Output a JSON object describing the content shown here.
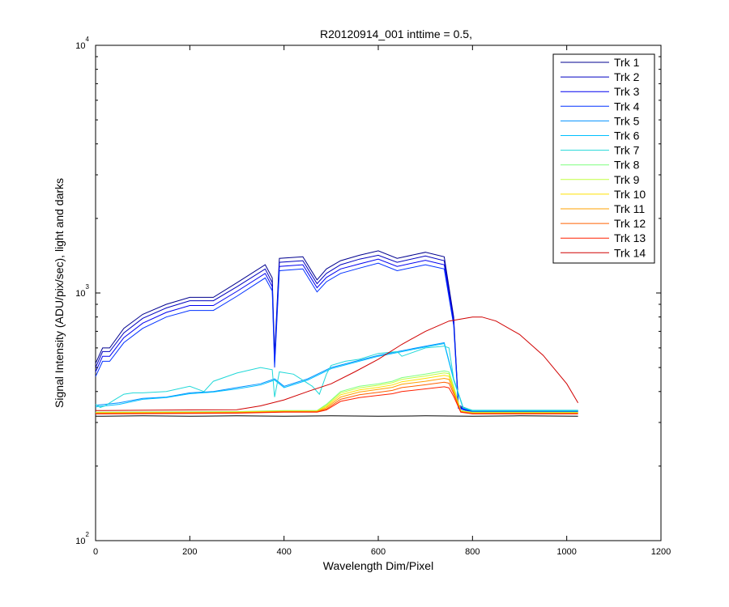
{
  "chart_data": {
    "type": "line",
    "title": "R20120914_001 inttime = 0.5,",
    "xlabel": "Wavelength Dim/Pixel",
    "ylabel": "Signal Intensity (ADU/pix/sec), light and darks",
    "xlim": [
      0,
      1200
    ],
    "ylim": [
      100,
      10000
    ],
    "yscale": "log",
    "x_ticks": [
      0,
      200,
      400,
      600,
      800,
      1000,
      1200
    ],
    "x_tick_labels": [
      "0",
      "200",
      "400",
      "600",
      "800",
      "1000",
      "1200"
    ],
    "y_ticks": [
      {
        "value": 100,
        "base": "10",
        "exp": "2"
      },
      {
        "value": 1000,
        "base": "10",
        "exp": "3"
      },
      {
        "value": 10000,
        "base": "10",
        "exp": "4"
      }
    ],
    "grid": false,
    "legend_position": "top-right",
    "series": [
      {
        "name": "Trk 1",
        "color": "#00008f",
        "x": [
          0,
          15,
          30,
          60,
          100,
          150,
          200,
          250,
          300,
          360,
          375,
          380,
          390,
          440,
          470,
          490,
          520,
          560,
          600,
          640,
          700,
          740,
          760,
          770,
          800,
          900,
          1024
        ],
        "y": [
          520,
          600,
          600,
          720,
          820,
          900,
          960,
          960,
          1100,
          1300,
          1150,
          560,
          1380,
          1400,
          1130,
          1250,
          1350,
          1420,
          1480,
          1380,
          1460,
          1400,
          800,
          352,
          335,
          335,
          335
        ]
      },
      {
        "name": "Trk 2",
        "color": "#0000c0",
        "x": [
          0,
          15,
          30,
          60,
          100,
          150,
          200,
          250,
          300,
          360,
          375,
          380,
          390,
          440,
          470,
          490,
          520,
          560,
          600,
          640,
          700,
          740,
          760,
          770,
          800,
          900,
          1024
        ],
        "y": [
          500,
          580,
          580,
          690,
          790,
          870,
          930,
          930,
          1060,
          1250,
          1100,
          540,
          1330,
          1350,
          1090,
          1200,
          1300,
          1370,
          1420,
          1330,
          1410,
          1350,
          780,
          348,
          333,
          333,
          333
        ]
      },
      {
        "name": "Trk 3",
        "color": "#0000f0",
        "x": [
          0,
          15,
          30,
          60,
          100,
          150,
          200,
          250,
          300,
          360,
          375,
          380,
          390,
          440,
          470,
          490,
          520,
          560,
          600,
          640,
          700,
          740,
          760,
          770,
          800,
          900,
          1024
        ],
        "y": [
          480,
          555,
          555,
          660,
          755,
          835,
          890,
          890,
          1015,
          1200,
          1060,
          520,
          1280,
          1300,
          1050,
          1155,
          1250,
          1310,
          1370,
          1280,
          1355,
          1300,
          760,
          345,
          331,
          331,
          331
        ]
      },
      {
        "name": "Trk 4",
        "color": "#0030ff",
        "x": [
          0,
          15,
          30,
          60,
          100,
          150,
          200,
          250,
          300,
          360,
          375,
          380,
          390,
          440,
          470,
          490,
          520,
          560,
          600,
          640,
          700,
          740,
          760,
          770,
          800,
          900,
          1024
        ],
        "y": [
          460,
          530,
          530,
          630,
          720,
          800,
          850,
          850,
          970,
          1150,
          1020,
          500,
          1230,
          1250,
          1010,
          1110,
          1200,
          1260,
          1320,
          1230,
          1300,
          1250,
          740,
          342,
          330,
          330,
          330
        ]
      },
      {
        "name": "Trk 5",
        "color": "#0090ff",
        "x": [
          0,
          50,
          100,
          150,
          200,
          250,
          300,
          350,
          380,
          400,
          450,
          500,
          600,
          700,
          740,
          760,
          780,
          800,
          1024
        ],
        "y": [
          352,
          360,
          375,
          380,
          395,
          400,
          415,
          430,
          450,
          420,
          450,
          500,
          560,
          610,
          630,
          450,
          345,
          335,
          335
        ]
      },
      {
        "name": "Trk 6",
        "color": "#00c0ff",
        "x": [
          0,
          50,
          100,
          150,
          200,
          250,
          300,
          350,
          380,
          400,
          450,
          500,
          600,
          700,
          740,
          760,
          780,
          800,
          1024
        ],
        "y": [
          347,
          355,
          372,
          378,
          392,
          398,
          410,
          425,
          445,
          415,
          445,
          495,
          555,
          605,
          625,
          445,
          343,
          334,
          334
        ]
      },
      {
        "name": "Trk 7",
        "color": "#20d8d8",
        "x": [
          0,
          10,
          20,
          40,
          60,
          80,
          100,
          150,
          200,
          230,
          250,
          300,
          350,
          375,
          380,
          390,
          420,
          460,
          475,
          490,
          500,
          530,
          560,
          600,
          640,
          650,
          700,
          740,
          750,
          760,
          780,
          800,
          1024
        ],
        "y": [
          355,
          345,
          350,
          370,
          390,
          395,
          395,
          400,
          420,
          400,
          440,
          475,
          500,
          490,
          380,
          480,
          470,
          420,
          390,
          470,
          510,
          530,
          540,
          570,
          580,
          555,
          600,
          610,
          600,
          450,
          345,
          336,
          336
        ]
      },
      {
        "name": "Trk 8",
        "color": "#7fff7f",
        "x": [
          0,
          300,
          400,
          470,
          490,
          520,
          560,
          600,
          630,
          650,
          700,
          740,
          750,
          760,
          775,
          800,
          1024
        ],
        "y": [
          330,
          332,
          335,
          335,
          355,
          400,
          420,
          430,
          440,
          455,
          470,
          485,
          480,
          420,
          335,
          330,
          330
        ]
      },
      {
        "name": "Trk 9",
        "color": "#c0ff40",
        "x": [
          0,
          300,
          400,
          470,
          490,
          520,
          560,
          600,
          630,
          650,
          700,
          740,
          750,
          760,
          775,
          800,
          1024
        ],
        "y": [
          329,
          331,
          334,
          334,
          352,
          395,
          414,
          424,
          434,
          448,
          462,
          476,
          472,
          415,
          334,
          329,
          329
        ]
      },
      {
        "name": "Trk 10",
        "color": "#ffe000",
        "x": [
          0,
          300,
          400,
          470,
          490,
          520,
          560,
          600,
          630,
          650,
          700,
          740,
          750,
          760,
          775,
          800,
          1024
        ],
        "y": [
          328,
          330,
          333,
          333,
          348,
          388,
          406,
          416,
          425,
          438,
          452,
          465,
          461,
          408,
          333,
          328,
          328
        ]
      },
      {
        "name": "Trk 11",
        "color": "#ffa000",
        "x": [
          0,
          300,
          400,
          470,
          490,
          520,
          560,
          600,
          630,
          650,
          700,
          740,
          750,
          760,
          775,
          800,
          1024
        ],
        "y": [
          327,
          329,
          332,
          332,
          344,
          380,
          398,
          408,
          416,
          428,
          440,
          452,
          448,
          400,
          332,
          327,
          327
        ]
      },
      {
        "name": "Trk 12",
        "color": "#ff6000",
        "x": [
          0,
          300,
          400,
          470,
          490,
          520,
          560,
          600,
          630,
          650,
          700,
          740,
          750,
          760,
          775,
          800,
          1024
        ],
        "y": [
          326,
          328,
          331,
          331,
          340,
          372,
          388,
          397,
          404,
          415,
          426,
          436,
          432,
          392,
          331,
          326,
          326
        ]
      },
      {
        "name": "Trk 13",
        "color": "#ff2000",
        "x": [
          0,
          300,
          400,
          470,
          490,
          520,
          560,
          600,
          630,
          650,
          700,
          740,
          750,
          760,
          775,
          800,
          1024
        ],
        "y": [
          325,
          327,
          330,
          330,
          337,
          365,
          378,
          386,
          392,
          400,
          410,
          418,
          414,
          382,
          330,
          325,
          325
        ]
      },
      {
        "name": "Trk 14",
        "color": "#d00000",
        "x": [
          0,
          100,
          200,
          300,
          350,
          400,
          450,
          500,
          550,
          600,
          650,
          700,
          750,
          800,
          820,
          850,
          900,
          950,
          1000,
          1024
        ],
        "y": [
          335,
          336,
          337,
          338,
          350,
          370,
          400,
          430,
          480,
          540,
          620,
          700,
          770,
          800,
          800,
          770,
          680,
          560,
          430,
          360
        ]
      },
      {
        "name": "",
        "color": "#000000",
        "x": [
          0,
          100,
          200,
          300,
          400,
          500,
          600,
          700,
          800,
          900,
          1024
        ],
        "y": [
          318,
          319,
          318,
          319,
          318,
          319,
          318,
          319,
          318,
          319,
          318
        ]
      }
    ]
  }
}
